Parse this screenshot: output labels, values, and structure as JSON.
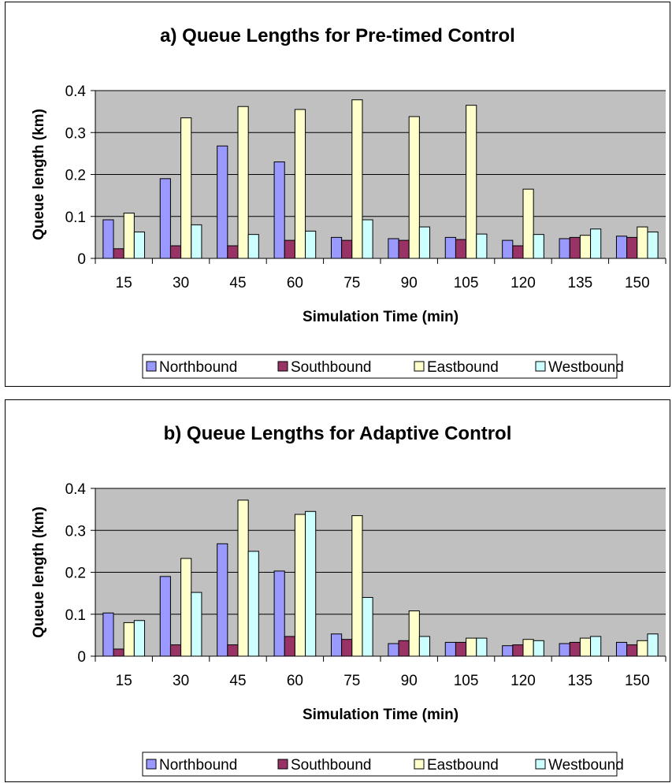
{
  "chart_data": [
    {
      "type": "bar",
      "title": "a) Queue Lengths for Pre-timed Control",
      "xlabel": "Simulation Time (min)",
      "ylabel": "Queue length (km)",
      "ylim": [
        0,
        0.4
      ],
      "yticks": [
        "0",
        "0.1",
        "0.2",
        "0.3",
        "0.4"
      ],
      "grid": true,
      "legend_position": "bottom",
      "categories": [
        "15",
        "30",
        "45",
        "60",
        "75",
        "90",
        "105",
        "120",
        "135",
        "150"
      ],
      "series": [
        {
          "name": "Northbound",
          "color": "#9999ff",
          "values": [
            0.092,
            0.19,
            0.268,
            0.23,
            0.05,
            0.047,
            0.05,
            0.043,
            0.047,
            0.053
          ]
        },
        {
          "name": "Southbound",
          "color": "#993366",
          "values": [
            0.023,
            0.03,
            0.03,
            0.043,
            0.043,
            0.043,
            0.045,
            0.03,
            0.05,
            0.05
          ]
        },
        {
          "name": "Eastbound",
          "color": "#ffffcc",
          "values": [
            0.108,
            0.335,
            0.362,
            0.355,
            0.378,
            0.338,
            0.365,
            0.165,
            0.055,
            0.075
          ]
        },
        {
          "name": "Westbound",
          "color": "#ccffff",
          "values": [
            0.063,
            0.08,
            0.057,
            0.065,
            0.092,
            0.075,
            0.058,
            0.057,
            0.07,
            0.063
          ]
        }
      ]
    },
    {
      "type": "bar",
      "title": "b) Queue Lengths for Adaptive Control",
      "xlabel": "Simulation Time (min)",
      "ylabel": "Queue length (km)",
      "ylim": [
        0,
        0.4
      ],
      "yticks": [
        "0",
        "0.1",
        "0.2",
        "0.3",
        "0.4"
      ],
      "grid": true,
      "legend_position": "bottom",
      "categories": [
        "15",
        "30",
        "45",
        "60",
        "75",
        "90",
        "105",
        "120",
        "135",
        "150"
      ],
      "series": [
        {
          "name": "Northbound",
          "color": "#9999ff",
          "values": [
            0.103,
            0.19,
            0.268,
            0.203,
            0.053,
            0.03,
            0.033,
            0.025,
            0.03,
            0.033
          ]
        },
        {
          "name": "Southbound",
          "color": "#993366",
          "values": [
            0.017,
            0.027,
            0.027,
            0.047,
            0.04,
            0.037,
            0.033,
            0.027,
            0.033,
            0.027
          ]
        },
        {
          "name": "Eastbound",
          "color": "#ffffcc",
          "values": [
            0.08,
            0.233,
            0.372,
            0.338,
            0.335,
            0.108,
            0.043,
            0.04,
            0.043,
            0.037
          ]
        },
        {
          "name": "Westbound",
          "color": "#ccffff",
          "values": [
            0.085,
            0.152,
            0.25,
            0.345,
            0.14,
            0.047,
            0.043,
            0.037,
            0.047,
            0.053
          ]
        }
      ]
    }
  ]
}
